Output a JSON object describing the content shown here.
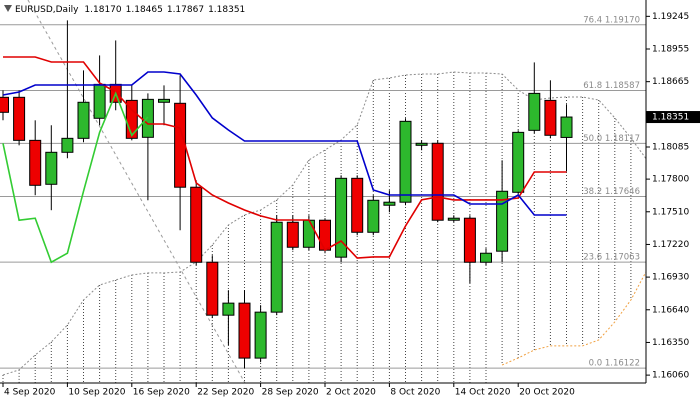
{
  "chart_data": {
    "type": "candlestick",
    "title": "EURUSD,Daily",
    "header_values": [
      "1.18170",
      "1.18465",
      "1.17867",
      "1.18351"
    ],
    "categories": [
      "4 Sep 2020",
      null,
      null,
      null,
      "10 Sep 2020",
      null,
      null,
      null,
      "16 Sep 2020",
      null,
      null,
      null,
      "22 Sep 2020",
      null,
      null,
      null,
      "28 Sep 2020",
      null,
      null,
      null,
      "2 Oct 2020",
      null,
      null,
      null,
      "8 Oct 2020",
      null,
      null,
      null,
      "14 Oct 2020",
      null,
      null,
      null,
      "20 Oct 2020",
      null,
      null,
      null,
      null,
      null,
      null,
      null,
      null
    ],
    "open": [
      1.18526,
      1.18526,
      1.18144,
      1.17754,
      1.18038,
      1.18162,
      1.1834,
      1.18641,
      1.18499,
      1.18171,
      1.18482,
      1.18473,
      1.17728,
      1.17062,
      1.16592,
      1.16699,
      1.16211,
      1.16619,
      1.17417,
      1.17195,
      1.17435,
      1.17107,
      1.17807,
      1.17328,
      1.17568,
      1.17595,
      1.181,
      1.18118,
      1.17435,
      1.17453,
      1.17062,
      1.1716,
      1.17683,
      1.18233,
      1.18499,
      1.1817,
      null,
      null,
      null,
      null,
      null
    ],
    "high": [
      1.18588,
      1.18588,
      1.18322,
      1.18278,
      1.19209,
      1.18765,
      1.18898,
      1.19031,
      1.18632,
      1.18561,
      1.18632,
      1.18721,
      1.1779,
      1.17124,
      1.16814,
      1.16814,
      1.16681,
      1.17479,
      1.17479,
      1.17479,
      1.17453,
      1.17834,
      1.17834,
      1.17657,
      1.17701,
      1.1834,
      1.18144,
      1.18144,
      1.17479,
      1.17479,
      1.17186,
      1.17967,
      1.18233,
      1.18836,
      1.18677,
      1.18465,
      null,
      null,
      null,
      null,
      null
    ],
    "low": [
      1.18322,
      1.181,
      1.17657,
      1.17524,
      1.17985,
      1.18127,
      1.18278,
      1.18411,
      1.18144,
      1.17612,
      1.18278,
      1.17346,
      1.17036,
      1.16566,
      1.16326,
      1.16122,
      1.16175,
      1.16592,
      1.17169,
      1.17169,
      1.17142,
      1.17062,
      1.17302,
      1.17302,
      1.17506,
      1.17568,
      1.18056,
      1.17417,
      1.17417,
      1.16876,
      1.17036,
      1.17062,
      1.17657,
      1.18207,
      1.18162,
      1.17867,
      null,
      null,
      null,
      null,
      null
    ],
    "close": [
      1.18393,
      1.18144,
      1.17745,
      1.18038,
      1.18162,
      1.18482,
      1.18641,
      1.18482,
      1.18162,
      1.18508,
      1.18508,
      1.17728,
      1.17062,
      1.16592,
      1.16699,
      1.16211,
      1.16619,
      1.17417,
      1.17195,
      1.17435,
      1.17169,
      1.17807,
      1.17328,
      1.17612,
      1.17595,
      1.18313,
      1.18118,
      1.17435,
      1.17453,
      1.17062,
      1.17142,
      1.17692,
      1.18215,
      1.18561,
      1.18189,
      1.18351,
      null,
      null,
      null,
      null,
      null
    ],
    "up_color": "#2db82d",
    "down_color": "#ee0000",
    "series": [
      {
        "color": "#e00000",
        "style": "solid",
        "values": [
          1.18884,
          1.18884,
          1.18884,
          1.1884,
          1.1884,
          1.1884,
          1.18653,
          1.18573,
          1.18414,
          1.18289,
          1.18289,
          1.18254,
          1.17766,
          1.17659,
          1.17588,
          1.17526,
          1.17473,
          1.17437,
          1.17437,
          1.17437,
          1.17171,
          1.17251,
          1.171,
          1.17109,
          1.17109,
          1.17384,
          1.17615,
          1.17641,
          1.17615,
          1.17615,
          1.17615,
          1.17615,
          1.17632,
          1.17863,
          1.17863,
          1.17863,
          null,
          null,
          null,
          null,
          null
        ]
      },
      {
        "color": "#0000cc",
        "style": "solid",
        "values": [
          1.18547,
          1.18573,
          1.18635,
          1.18635,
          1.18635,
          1.18635,
          1.18635,
          1.18635,
          1.18635,
          1.18751,
          1.18751,
          1.18733,
          1.18547,
          1.18343,
          1.18236,
          1.18138,
          1.18138,
          1.18138,
          1.18138,
          1.18138,
          1.18138,
          1.18138,
          1.18138,
          1.17703,
          1.17659,
          1.17659,
          1.17659,
          1.17659,
          1.17659,
          1.17579,
          1.17579,
          1.17579,
          1.17659,
          1.17481,
          1.17481,
          1.17481,
          null,
          null,
          null,
          null,
          null
        ]
      },
      {
        "color": "#33cc33",
        "style": "solid",
        "values": [
          1.18118,
          1.17435,
          1.17453,
          1.17062,
          1.17142,
          1.17692,
          1.18215,
          1.18561,
          1.18189,
          1.18351,
          null,
          null,
          null,
          null,
          null,
          null,
          null,
          null,
          null,
          null,
          null,
          null,
          null,
          null,
          null,
          null,
          null,
          null,
          null,
          null,
          null,
          null,
          null,
          null,
          null,
          null,
          null,
          null,
          null,
          null,
          null
        ]
      },
      {
        "color": "#8c8c8c",
        "style": "dotted",
        "values": [
          1.16061,
          1.16106,
          1.16239,
          1.16354,
          1.16505,
          1.16727,
          1.1686,
          1.16904,
          1.16949,
          1.16967,
          1.16967,
          1.16975,
          1.17064,
          1.17215,
          1.17393,
          1.17481,
          1.17526,
          1.17615,
          1.17748,
          1.1797,
          1.18058,
          1.18147,
          1.1828,
          1.1868,
          1.18698,
          1.18724,
          1.18733,
          1.18733,
          1.18751,
          1.18742,
          1.18742,
          1.18733,
          1.18591,
          1.18502,
          1.1852,
          1.18529,
          1.18529,
          1.18502,
          1.18343,
          1.18165,
          1.1797
        ]
      },
      {
        "color": "#f0a040",
        "style": "dotted",
        "values": [
          null,
          null,
          null,
          null,
          null,
          null,
          null,
          null,
          null,
          null,
          null,
          null,
          null,
          null,
          null,
          null,
          null,
          null,
          null,
          null,
          null,
          null,
          null,
          null,
          null,
          null,
          null,
          null,
          null,
          null,
          null,
          1.1615,
          1.16212,
          1.16283,
          1.16319,
          1.16319,
          1.16319,
          1.16372,
          1.16532,
          1.16727,
          1.16993
        ]
      }
    ],
    "cloud_between": [
      3,
      4
    ],
    "fibo": [
      {
        "value": 1.1917,
        "label": "76.4 1.19170"
      },
      {
        "value": 1.18587,
        "label": "61.8 1.18587"
      },
      {
        "value": 1.18117,
        "label": "50.0 1.18117"
      },
      {
        "value": 1.17646,
        "label": "38.2 1.17646"
      },
      {
        "value": 1.17063,
        "label": "23.6 1.17063"
      },
      {
        "value": 1.16122,
        "label": "0.0 1.16122"
      }
    ],
    "ylim": [
      1.1599,
      1.1939
    ],
    "yticks": [
      1.19245,
      1.18955,
      1.18665,
      1.18085,
      {
        "value": 1.178,
        "label": "1.17800"
      },
      {
        "value": 1.1751,
        "label": "1.17510"
      },
      {
        "value": 1.1722,
        "label": "1.17220"
      },
      {
        "value": 1.1693,
        "label": "1.16930"
      },
      {
        "value": 1.1664,
        "label": "1.16640"
      },
      {
        "value": 1.1635,
        "label": "1.16350"
      },
      {
        "value": 1.1606,
        "label": "1.16060"
      }
    ],
    "current_price": 1.18351
  }
}
